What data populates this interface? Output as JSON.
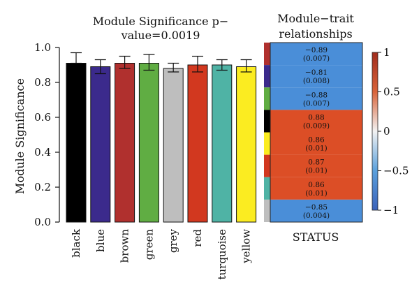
{
  "bar_chart": {
    "type": "bar",
    "title_line1": "Module Significance p−",
    "title_line2": "value=0.0019",
    "ylabel": "Module Significance",
    "ylim": [
      0,
      1.0
    ],
    "yticks": [
      "0.0",
      "0.2",
      "0.4",
      "0.6",
      "0.8",
      "1.0"
    ],
    "categories": [
      "black",
      "blue",
      "brown",
      "green",
      "grey",
      "red",
      "turquoise",
      "yellow"
    ],
    "values": [
      0.91,
      0.89,
      0.91,
      0.91,
      0.88,
      0.9,
      0.9,
      0.89
    ],
    "err_upper": [
      0.97,
      0.93,
      0.95,
      0.96,
      0.91,
      0.95,
      0.93,
      0.93
    ],
    "err_lower": [
      0.91,
      0.85,
      0.88,
      0.87,
      0.86,
      0.86,
      0.87,
      0.86
    ],
    "colors": [
      "#000000",
      "#3b2a8c",
      "#b0302e",
      "#60ad43",
      "#bebebe",
      "#d2381f",
      "#4fb3a5",
      "#fbec21"
    ]
  },
  "heatmap": {
    "type": "heatmap",
    "title_line1": "Module−trait",
    "title_line2": "relationships",
    "xlabel": "STATUS",
    "rows": [
      {
        "module": "brown",
        "color": "#b0302e",
        "value": -0.89,
        "label": "−0.89",
        "pvalue": "(0.007)"
      },
      {
        "module": "blue",
        "color": "#3b2a8c",
        "value": -0.81,
        "label": "−0.81",
        "pvalue": "(0.008)"
      },
      {
        "module": "green",
        "color": "#60ad43",
        "value": -0.88,
        "label": "−0.88",
        "pvalue": "(0.007)"
      },
      {
        "module": "black",
        "color": "#000000",
        "value": 0.88,
        "label": "0.88",
        "pvalue": "(0.009)"
      },
      {
        "module": "yellow",
        "color": "#fbec21",
        "value": 0.86,
        "label": "0.86",
        "pvalue": "(0.01)"
      },
      {
        "module": "red",
        "color": "#d2381f",
        "value": 0.87,
        "label": "0.87",
        "pvalue": "(0.01)"
      },
      {
        "module": "turquoise",
        "color": "#4fb3a5",
        "value": 0.86,
        "label": "0.86",
        "pvalue": "(0.01)"
      },
      {
        "module": "grey",
        "color": "#bebebe",
        "value": -0.85,
        "label": "−0.85",
        "pvalue": "(0.004)"
      }
    ],
    "negative_color": "#4a8ed8",
    "positive_color": "#dc4e26",
    "colorbar": {
      "range": [
        -1,
        1
      ],
      "ticks": [
        {
          "value": 1,
          "label": "1"
        },
        {
          "value": 0.5,
          "label": "0.5"
        },
        {
          "value": 0,
          "label": "0"
        },
        {
          "value": -0.5,
          "label": "−0.5"
        },
        {
          "value": -1,
          "label": "−1"
        }
      ],
      "stops": [
        "#3b62ba",
        "#5aa0dc",
        "#f2f2f2",
        "#d9643a",
        "#a02b1c"
      ]
    }
  }
}
